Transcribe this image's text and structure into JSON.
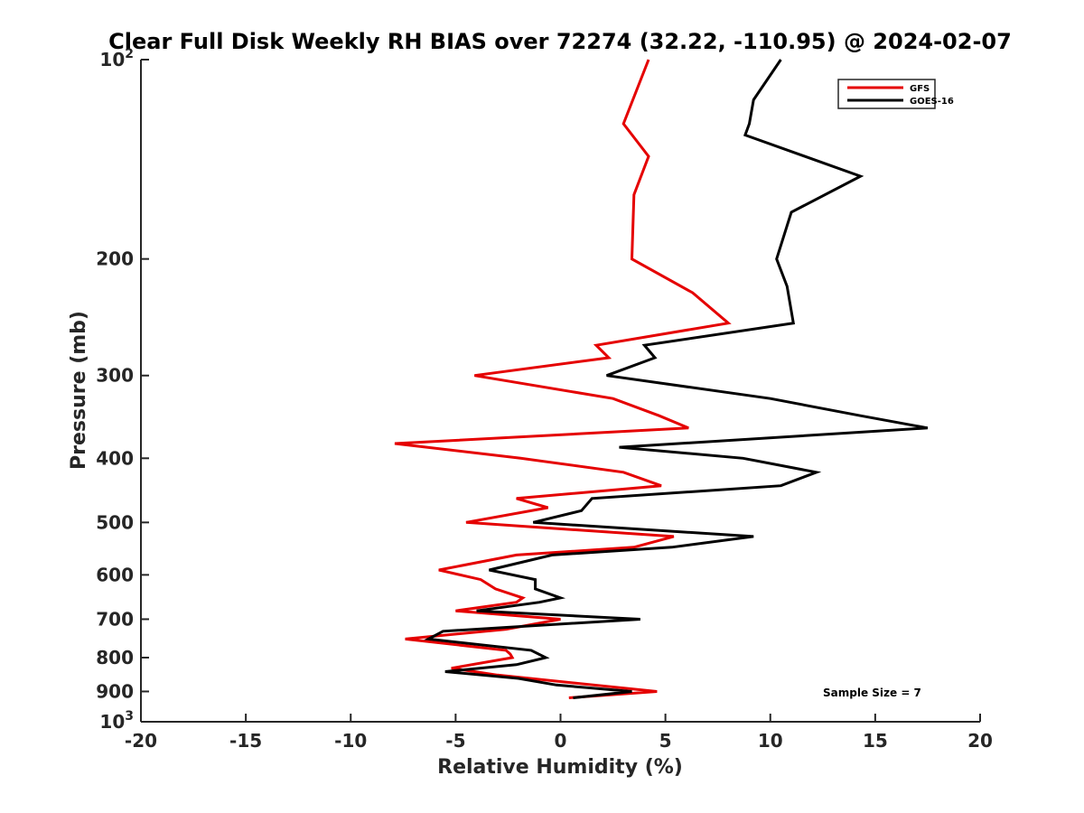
{
  "chart_data": {
    "type": "line",
    "title": "Clear Full Disk Weekly RH BIAS over 72274 (32.22, -110.95) @ 2024-02-07",
    "xlabel": "Relative Humidity (%)",
    "ylabel": "Pressure (mb)",
    "xlim": [
      -20,
      20
    ],
    "ylim": [
      100,
      1000
    ],
    "yscale": "log",
    "y_reversed": true,
    "grid": false,
    "legend_position": "top-right",
    "x_ticks": [
      {
        "value": -20,
        "label": "-20"
      },
      {
        "value": -15,
        "label": "-15"
      },
      {
        "value": -10,
        "label": "-10"
      },
      {
        "value": -5,
        "label": "-5"
      },
      {
        "value": 0,
        "label": "0"
      },
      {
        "value": 5,
        "label": "5"
      },
      {
        "value": 10,
        "label": "10"
      },
      {
        "value": 15,
        "label": "15"
      },
      {
        "value": 20,
        "label": "20"
      }
    ],
    "y_ticks": [
      {
        "value": 100,
        "base": "10",
        "exp": "2"
      },
      {
        "value": 200,
        "base": "200",
        "exp": ""
      },
      {
        "value": 300,
        "base": "300",
        "exp": ""
      },
      {
        "value": 400,
        "base": "400",
        "exp": ""
      },
      {
        "value": 500,
        "base": "500",
        "exp": ""
      },
      {
        "value": 600,
        "base": "600",
        "exp": ""
      },
      {
        "value": 700,
        "base": "700",
        "exp": ""
      },
      {
        "value": 800,
        "base": "800",
        "exp": ""
      },
      {
        "value": 900,
        "base": "900",
        "exp": ""
      },
      {
        "value": 1000,
        "base": "10",
        "exp": "3"
      }
    ],
    "series": [
      {
        "name": "GFS",
        "color": "#e50000",
        "points": [
          [
            4.2,
            100
          ],
          [
            3,
            125
          ],
          [
            4.2,
            140
          ],
          [
            3.5,
            160
          ],
          [
            3.4,
            200
          ],
          [
            6.3,
            225
          ],
          [
            8,
            250
          ],
          [
            1.7,
            270
          ],
          [
            2.3,
            282
          ],
          [
            -4.1,
            300
          ],
          [
            2.5,
            325
          ],
          [
            4.7,
            345
          ],
          [
            6.1,
            360
          ],
          [
            -7.9,
            380
          ],
          [
            -1.9,
            400
          ],
          [
            3,
            420
          ],
          [
            4.8,
            440
          ],
          [
            -2.1,
            460
          ],
          [
            -0.6,
            475
          ],
          [
            -4.5,
            500
          ],
          [
            5.4,
            525
          ],
          [
            3.5,
            545
          ],
          [
            -2.1,
            560
          ],
          [
            -5.8,
            590
          ],
          [
            -3.8,
            610
          ],
          [
            -3.1,
            630
          ],
          [
            -1.8,
            650
          ],
          [
            -2.1,
            660
          ],
          [
            -5,
            680
          ],
          [
            0,
            700
          ],
          [
            -2.6,
            725
          ],
          [
            -7.4,
            750
          ],
          [
            -2.6,
            780
          ],
          [
            -2.4,
            790
          ],
          [
            -2.3,
            800
          ],
          [
            -5.2,
            830
          ],
          [
            -3,
            850
          ],
          [
            4.6,
            900
          ],
          [
            0.4,
            920
          ]
        ]
      },
      {
        "name": "GOES-16",
        "color": "#000000",
        "points": [
          [
            10.5,
            100
          ],
          [
            9.2,
            115
          ],
          [
            9,
            125
          ],
          [
            8.8,
            130
          ],
          [
            14.3,
            150
          ],
          [
            11,
            170
          ],
          [
            10.3,
            200
          ],
          [
            10.8,
            220
          ],
          [
            11.1,
            250
          ],
          [
            4,
            270
          ],
          [
            4.5,
            282
          ],
          [
            2.2,
            300
          ],
          [
            10,
            325
          ],
          [
            14.3,
            345
          ],
          [
            17.5,
            360
          ],
          [
            2.8,
            385
          ],
          [
            8.7,
            400
          ],
          [
            12.2,
            420
          ],
          [
            10.5,
            440
          ],
          [
            1.5,
            460
          ],
          [
            1,
            480
          ],
          [
            -1.3,
            500
          ],
          [
            9.2,
            525
          ],
          [
            5.3,
            545
          ],
          [
            -0.4,
            560
          ],
          [
            -3.4,
            590
          ],
          [
            -1.2,
            610
          ],
          [
            -1.2,
            630
          ],
          [
            0,
            650
          ],
          [
            -1,
            660
          ],
          [
            -4,
            680
          ],
          [
            3.8,
            700
          ],
          [
            -5.6,
            730
          ],
          [
            -6.3,
            750
          ],
          [
            -1.4,
            780
          ],
          [
            -0.7,
            800
          ],
          [
            -2.1,
            820
          ],
          [
            -5.5,
            840
          ],
          [
            -2,
            860
          ],
          [
            -0.2,
            880
          ],
          [
            3.4,
            900
          ],
          [
            0.6,
            920
          ]
        ]
      }
    ],
    "annotations": [
      {
        "text": "Sample Size = 7"
      }
    ]
  }
}
